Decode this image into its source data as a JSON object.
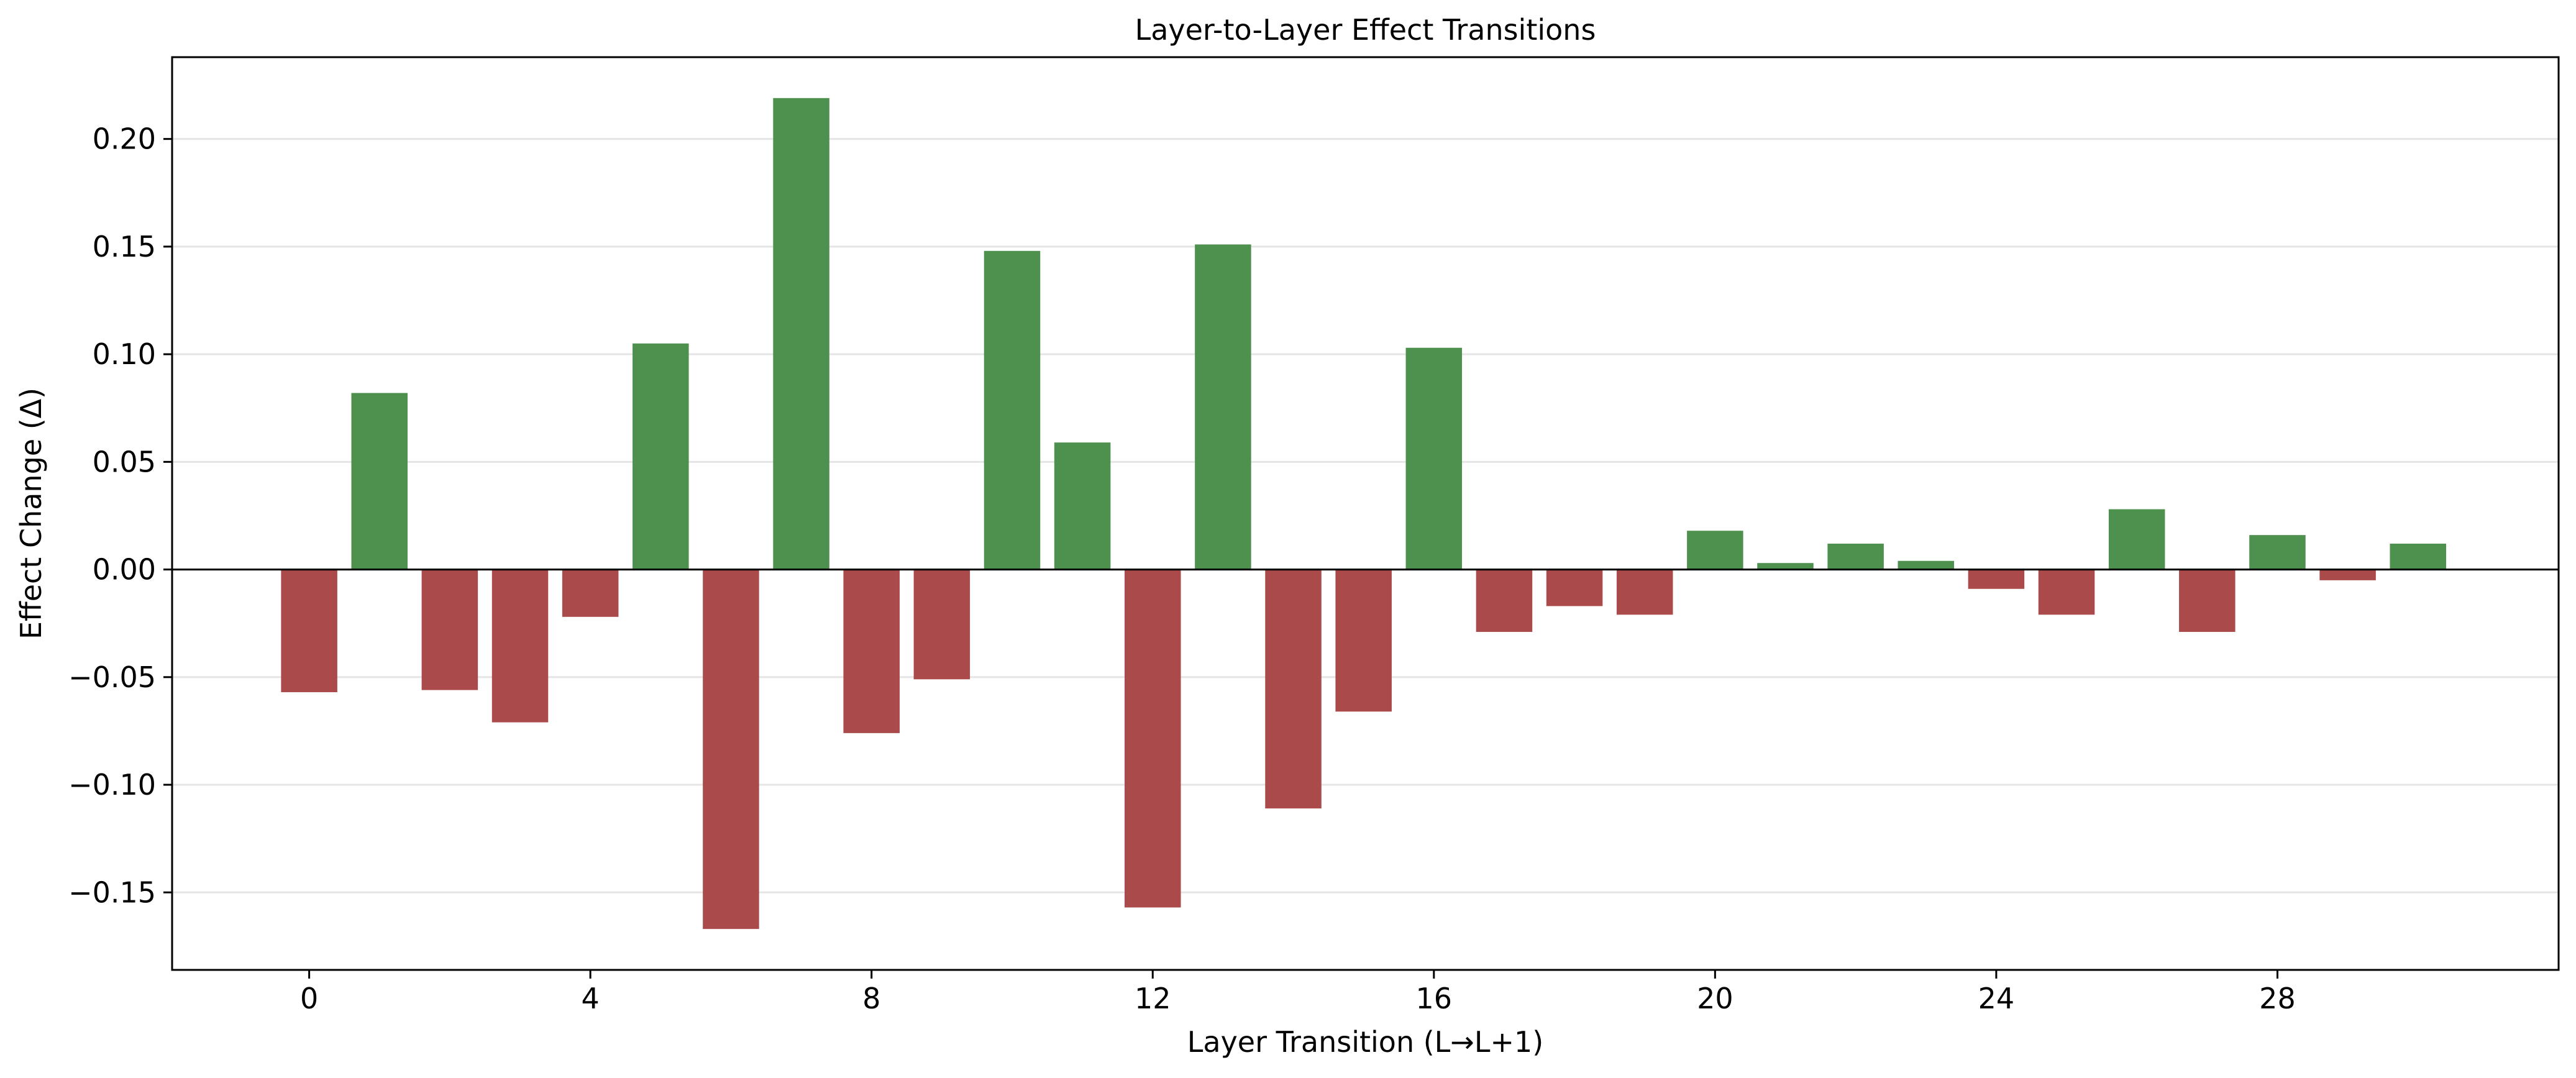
{
  "chart_data": {
    "type": "bar",
    "title": "Layer-to-Layer Effect Transitions",
    "xlabel": "Layer Transition (L→L+1)",
    "ylabel": "Effect Change (Δ)",
    "x": [
      0,
      1,
      2,
      3,
      4,
      5,
      6,
      7,
      8,
      9,
      10,
      11,
      12,
      13,
      14,
      15,
      16,
      17,
      18,
      19,
      20,
      21,
      22,
      23,
      24,
      25,
      26,
      27,
      28,
      29,
      30
    ],
    "values": [
      -0.057,
      0.082,
      -0.056,
      -0.071,
      -0.022,
      0.105,
      -0.167,
      0.219,
      -0.076,
      -0.051,
      0.148,
      0.059,
      -0.157,
      0.151,
      -0.111,
      -0.066,
      0.103,
      -0.029,
      -0.017,
      -0.021,
      0.018,
      0.003,
      0.012,
      0.004,
      -0.009,
      -0.021,
      0.028,
      -0.029,
      0.016,
      -0.005,
      0.012
    ],
    "xlim": [
      -1.95,
      32
    ],
    "ylim": [
      -0.186,
      0.238
    ],
    "xticks": [
      0,
      4,
      8,
      12,
      16,
      20,
      24,
      28
    ],
    "xtick_labels": [
      "0",
      "4",
      "8",
      "12",
      "16",
      "20",
      "24",
      "28"
    ],
    "yticks": [
      -0.15,
      -0.1,
      -0.05,
      0.0,
      0.05,
      0.1,
      0.15,
      0.2
    ],
    "ytick_labels": [
      "−0.15",
      "−0.10",
      "−0.05",
      "0.00",
      "0.05",
      "0.10",
      "0.15",
      "0.20"
    ],
    "grid": "horizontal",
    "colors": {
      "positive": "#4e914e",
      "negative": "#ab4a4b",
      "zero_line": "#000000",
      "grid": "#e5e5e5"
    }
  }
}
